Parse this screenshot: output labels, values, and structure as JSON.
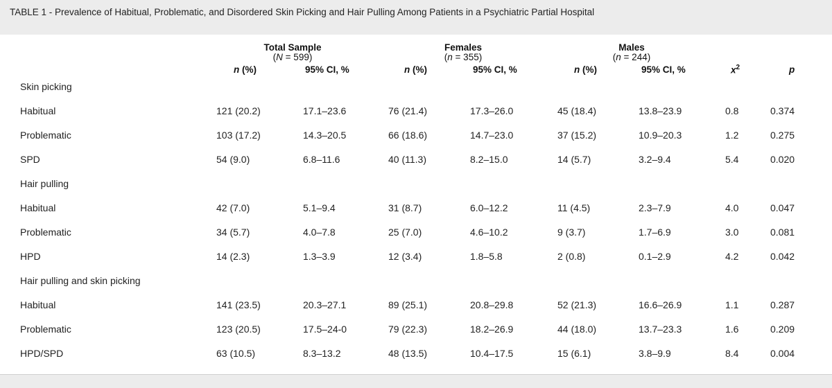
{
  "caption": "TABLE 1 - Prevalence of Habitual, Problematic, and Disordered Skin Picking and Hair Pulling Among Patients in a Psychiatric Partial Hospital",
  "groups": [
    {
      "title": "Total Sample",
      "n_var": "N",
      "n_val": " = 599)"
    },
    {
      "title": "Females",
      "n_var": "n",
      "n_val": " = 355)"
    },
    {
      "title": "Males",
      "n_var": "n",
      "n_val": " = 244)"
    }
  ],
  "subheaders": {
    "n_pct": "n",
    "n_pct_rest": " (%)",
    "ci": "95% CI, %",
    "chi": "x",
    "chi_sup": "2",
    "p": "p"
  },
  "sections": [
    {
      "label": "Skin picking",
      "rows": [
        {
          "label": "Habitual",
          "cells": [
            "121 (20.2)",
            "17.1–23.6",
            "76 (21.4)",
            "17.3–26.0",
            "45 (18.4)",
            "13.8–23.9",
            "0.8",
            "0.374"
          ]
        },
        {
          "label": "Problematic",
          "cells": [
            "103 (17.2)",
            "14.3–20.5",
            "66 (18.6)",
            "14.7–23.0",
            "37 (15.2)",
            "10.9–20.3",
            "1.2",
            "0.275"
          ]
        },
        {
          "label": "SPD",
          "cells": [
            "54 (9.0)",
            "6.8–11.6",
            "40 (11.3)",
            "8.2–15.0",
            "14 (5.7)",
            "3.2–9.4",
            "5.4",
            "0.020"
          ]
        }
      ]
    },
    {
      "label": "Hair pulling",
      "rows": [
        {
          "label": "Habitual",
          "cells": [
            "42 (7.0)",
            "5.1–9.4",
            "31 (8.7)",
            "6.0–12.2",
            "11 (4.5)",
            "2.3–7.9",
            "4.0",
            "0.047"
          ]
        },
        {
          "label": "Problematic",
          "cells": [
            "34 (5.7)",
            "4.0–7.8",
            "25 (7.0)",
            "4.6–10.2",
            "9 (3.7)",
            "1.7–6.9",
            "3.0",
            "0.081"
          ]
        },
        {
          "label": "HPD",
          "cells": [
            "14 (2.3)",
            "1.3–3.9",
            "12 (3.4)",
            "1.8–5.8",
            "2 (0.8)",
            "0.1–2.9",
            "4.2",
            "0.042"
          ]
        }
      ]
    },
    {
      "label": "Hair pulling and skin picking",
      "rows": [
        {
          "label": "Habitual",
          "cells": [
            "141 (23.5)",
            "20.3–27.1",
            "89 (25.1)",
            "20.8–29.8",
            "52 (21.3)",
            "16.6–26.9",
            "1.1",
            "0.287"
          ]
        },
        {
          "label": "Problematic",
          "cells": [
            "123 (20.5)",
            "17.5–24-0",
            "79 (22.3)",
            "18.2–26.9",
            "44 (18.0)",
            "13.7–23.3",
            "1.6",
            "0.209"
          ]
        },
        {
          "label": "HPD/SPD",
          "cells": [
            "63 (10.5)",
            "8.3–13.2",
            "48 (13.5)",
            "10.4–17.5",
            "15 (6.1)",
            "3.8–9.9",
            "8.4",
            "0.004"
          ]
        }
      ]
    }
  ]
}
